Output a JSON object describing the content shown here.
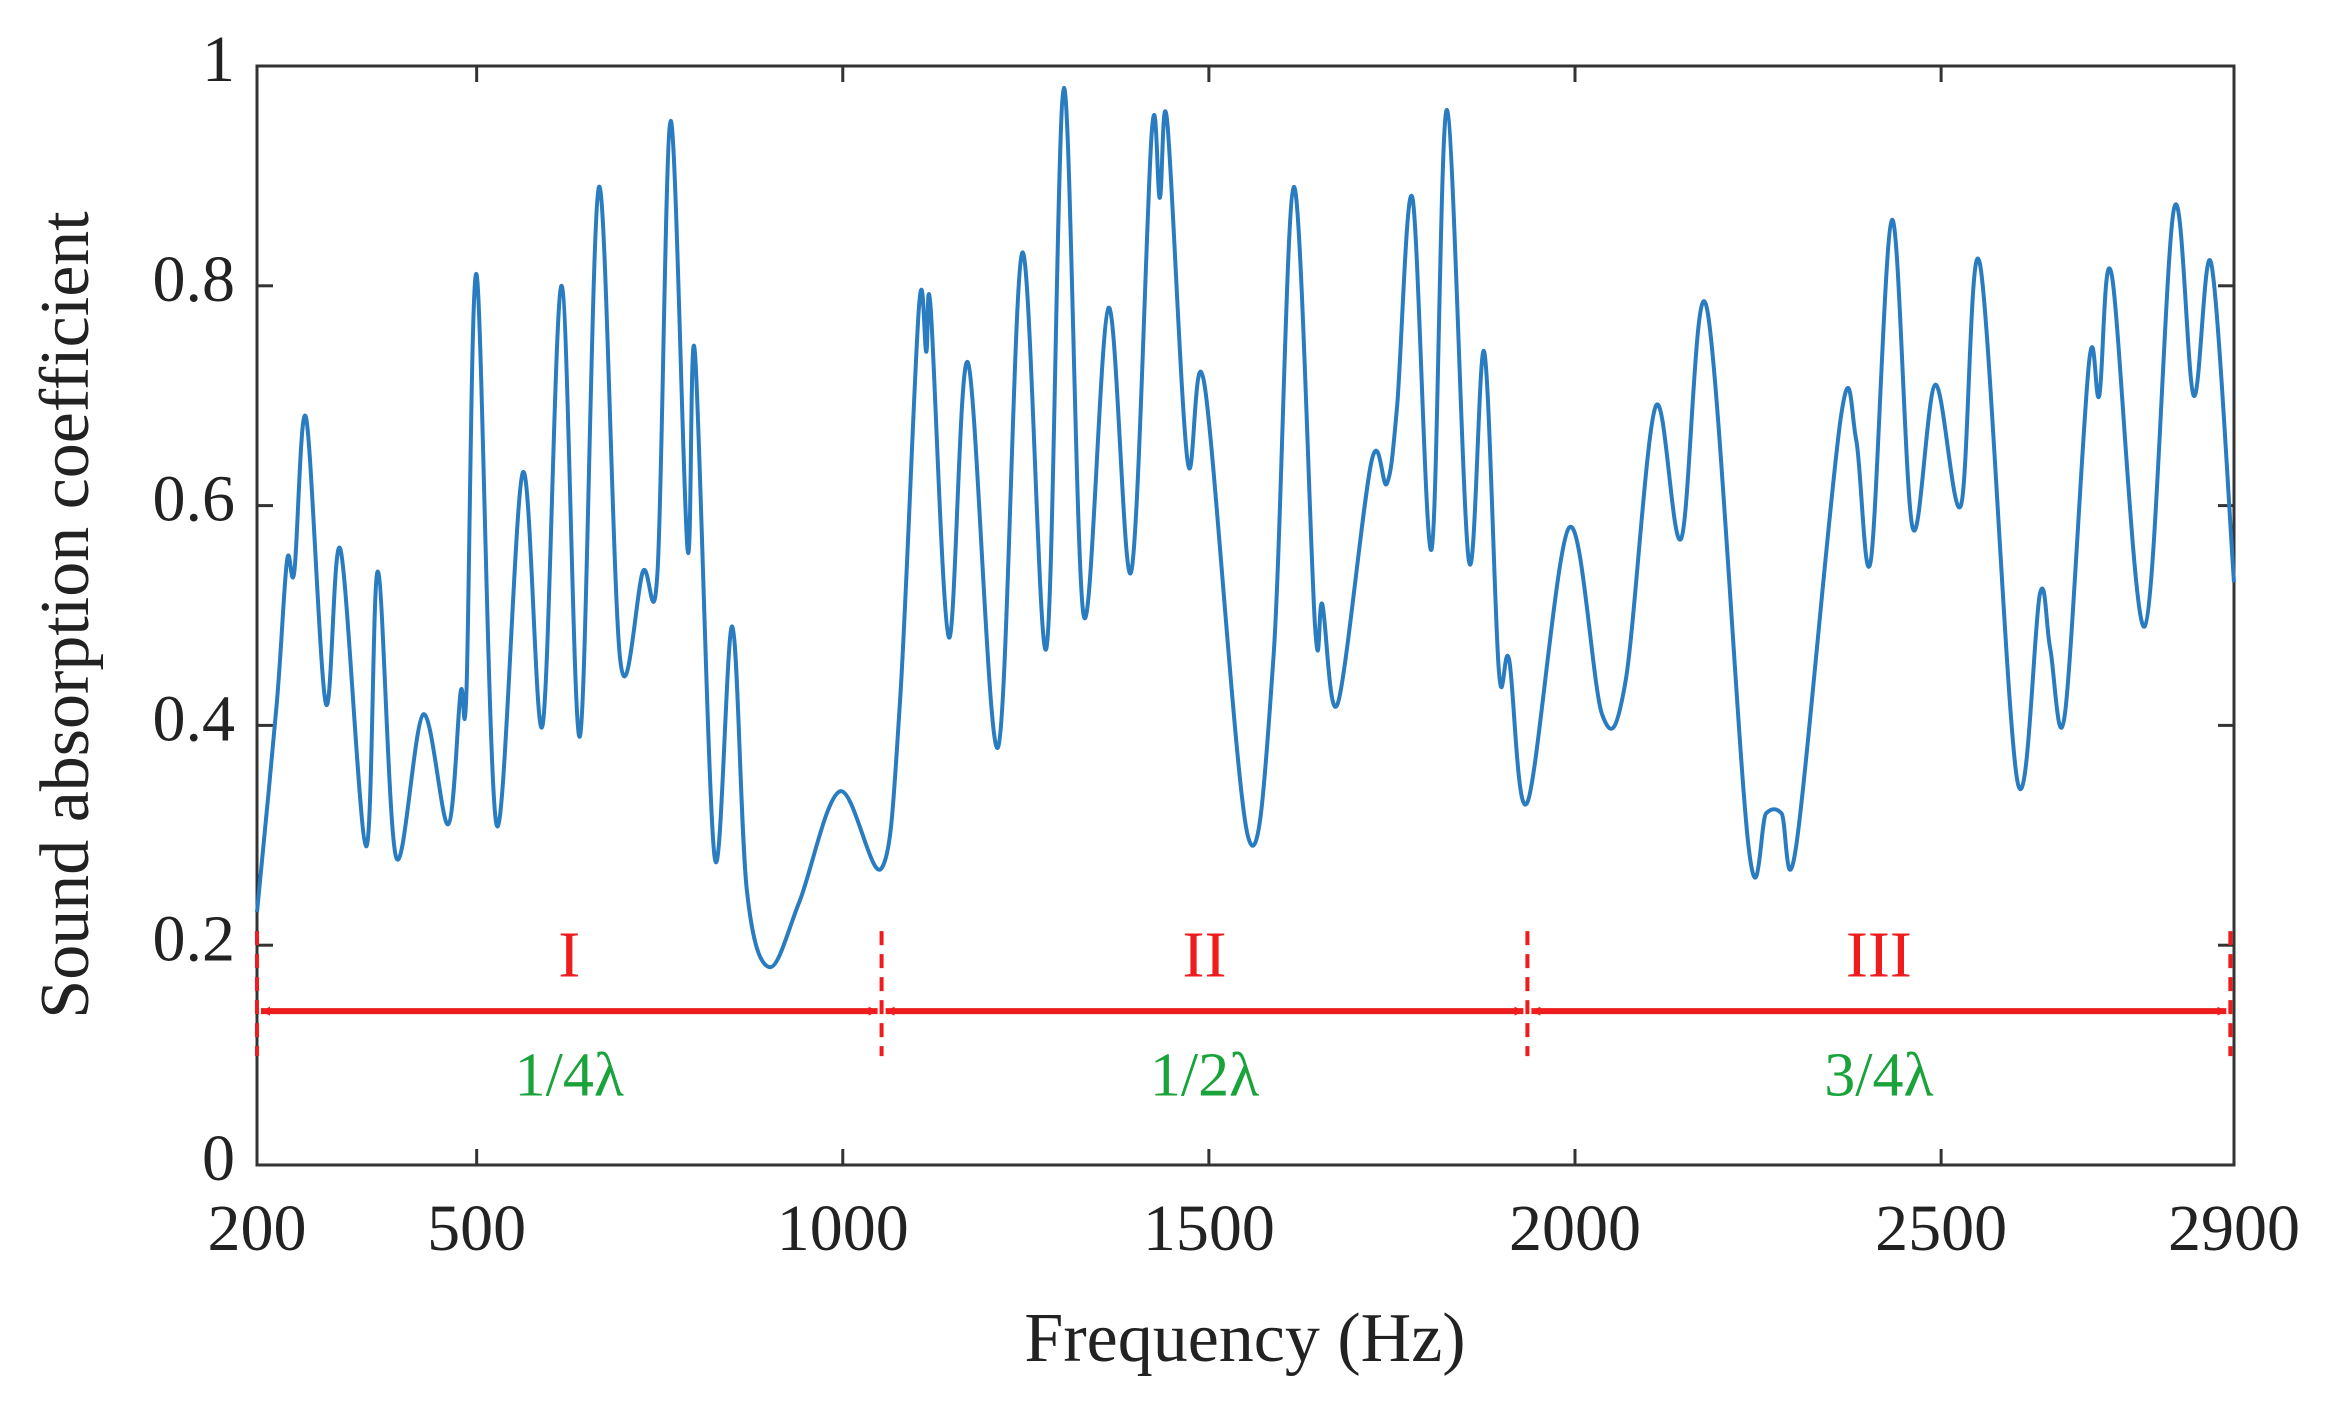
{
  "chart_data": {
    "type": "line",
    "x_label": "Frequency (Hz)",
    "y_label": "Sound absorption coefficient",
    "xlim": [
      200,
      2900
    ],
    "ylim": [
      0,
      1
    ],
    "xticks": [
      200,
      500,
      1000,
      1500,
      2000,
      2500,
      2900
    ],
    "yticks": [
      0,
      0.2,
      0.4,
      0.6,
      0.8,
      1
    ],
    "series": [
      {
        "name": "Sound absorption coefficient",
        "color": "#2a7cc0",
        "x": [
          200,
          227,
          241,
          251,
          267,
          294,
          314,
          349,
          365,
          390,
          427,
          461,
          478,
          486,
          500,
          527,
          563,
          590,
          616,
          641,
          667,
          696,
          727,
          747,
          765,
          788,
          798,
          825,
          849,
          869,
          900,
          941,
          996,
          1053,
          1078,
          1104,
          1114,
          1120,
          1145,
          1171,
          1212,
          1245,
          1278,
          1302,
          1329,
          1363,
          1394,
          1422,
          1433,
          1443,
          1471,
          1494,
          1553,
          1588,
          1616,
          1645,
          1655,
          1676,
          1722,
          1743,
          1757,
          1778,
          1804,
          1825,
          1855,
          1876,
          1896,
          1910,
          1935,
          1992,
          2037,
          2069,
          2110,
          2145,
          2180,
          2237,
          2261,
          2282,
          2302,
          2363,
          2384,
          2404,
          2433,
          2461,
          2492,
          2527,
          2553,
          2604,
          2635,
          2649,
          2669,
          2702,
          2716,
          2733,
          2778,
          2818,
          2845,
          2869,
          2900
        ],
        "values": [
          0.23,
          0.42,
          0.55,
          0.54,
          0.68,
          0.42,
          0.56,
          0.29,
          0.54,
          0.28,
          0.41,
          0.31,
          0.43,
          0.43,
          0.81,
          0.31,
          0.63,
          0.4,
          0.8,
          0.39,
          0.89,
          0.46,
          0.54,
          0.54,
          0.95,
          0.56,
          0.74,
          0.28,
          0.49,
          0.25,
          0.18,
          0.24,
          0.34,
          0.27,
          0.42,
          0.78,
          0.74,
          0.78,
          0.48,
          0.73,
          0.38,
          0.83,
          0.47,
          0.98,
          0.5,
          0.78,
          0.54,
          0.94,
          0.88,
          0.95,
          0.64,
          0.71,
          0.3,
          0.46,
          0.89,
          0.49,
          0.51,
          0.42,
          0.64,
          0.62,
          0.69,
          0.88,
          0.56,
          0.96,
          0.55,
          0.74,
          0.45,
          0.46,
          0.33,
          0.58,
          0.41,
          0.44,
          0.69,
          0.57,
          0.78,
          0.29,
          0.32,
          0.32,
          0.29,
          0.68,
          0.66,
          0.55,
          0.86,
          0.58,
          0.71,
          0.6,
          0.82,
          0.35,
          0.52,
          0.47,
          0.41,
          0.73,
          0.7,
          0.81,
          0.49,
          0.87,
          0.7,
          0.82,
          0.53
        ]
      }
    ],
    "annotations": {
      "color": "#ee1c1c",
      "boundaries": [
        200,
        1053,
        1935,
        2895
      ],
      "arrow_y": 0.14,
      "regions": [
        {
          "label": "I",
          "sublabel": "1/4λ"
        },
        {
          "label": "II",
          "sublabel": "1/2λ"
        },
        {
          "label": "III",
          "sublabel": "3/4λ"
        }
      ]
    }
  }
}
